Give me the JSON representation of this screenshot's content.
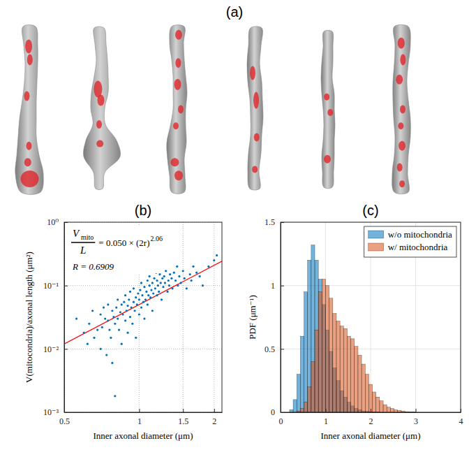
{
  "panel_a": {
    "label": "(a)"
  },
  "chart_data": [
    {
      "type": "scatter",
      "title": "(b)",
      "xlabel": "Inner axonal diameter (μm)",
      "ylabel": "V(mitocondria)/axonal length (μm²)",
      "log": true,
      "grid": true,
      "marker": "dot",
      "color": "#0072bd",
      "x": [
        0.56,
        0.6,
        0.62,
        0.63,
        0.65,
        0.66,
        0.68,
        0.7,
        0.7,
        0.71,
        0.72,
        0.73,
        0.74,
        0.75,
        0.75,
        0.76,
        0.77,
        0.78,
        0.78,
        0.79,
        0.8,
        0.8,
        0.81,
        0.82,
        0.82,
        0.83,
        0.84,
        0.85,
        0.85,
        0.86,
        0.87,
        0.88,
        0.88,
        0.89,
        0.9,
        0.9,
        0.91,
        0.92,
        0.92,
        0.93,
        0.94,
        0.95,
        0.95,
        0.96,
        0.97,
        0.97,
        0.98,
        0.99,
        1.0,
        1.0,
        1.01,
        1.02,
        1.02,
        1.03,
        1.04,
        1.05,
        1.05,
        1.06,
        1.07,
        1.08,
        1.08,
        1.09,
        1.1,
        1.1,
        1.11,
        1.12,
        1.13,
        1.13,
        1.14,
        1.15,
        1.16,
        1.17,
        1.18,
        1.18,
        1.19,
        1.2,
        1.21,
        1.22,
        1.23,
        1.24,
        1.25,
        1.26,
        1.27,
        1.28,
        1.3,
        1.31,
        1.32,
        1.33,
        1.35,
        1.36,
        1.38,
        1.4,
        1.42,
        1.43,
        1.45,
        1.47,
        1.5,
        1.52,
        1.55,
        1.6,
        1.62,
        1.65,
        1.7,
        1.75,
        1.8,
        1.9,
        2.0,
        2.05
      ],
      "values": [
        0.03,
        0.018,
        0.012,
        0.025,
        0.04,
        0.015,
        0.02,
        0.035,
        0.01,
        0.022,
        0.045,
        0.03,
        0.008,
        0.028,
        0.05,
        0.02,
        0.015,
        0.04,
        0.006,
        0.032,
        0.0018,
        0.025,
        0.045,
        0.03,
        0.06,
        0.02,
        0.038,
        0.012,
        0.05,
        0.035,
        0.055,
        0.028,
        0.07,
        0.04,
        0.018,
        0.048,
        0.06,
        0.032,
        0.08,
        0.045,
        0.025,
        0.055,
        0.09,
        0.04,
        0.065,
        0.015,
        0.05,
        0.075,
        0.035,
        0.06,
        0.085,
        0.045,
        0.11,
        0.07,
        0.055,
        0.03,
        0.095,
        0.06,
        0.08,
        0.12,
        0.05,
        0.07,
        0.1,
        0.14,
        0.065,
        0.085,
        0.11,
        0.04,
        0.075,
        0.13,
        0.09,
        0.16,
        0.07,
        0.12,
        0.1,
        0.08,
        0.15,
        0.11,
        0.06,
        0.13,
        0.095,
        0.14,
        0.11,
        0.17,
        0.08,
        0.12,
        0.1,
        0.15,
        0.13,
        0.09,
        0.16,
        0.12,
        0.2,
        0.1,
        0.14,
        0.11,
        0.17,
        0.13,
        0.09,
        0.15,
        0.12,
        0.2,
        0.16,
        0.14,
        0.1,
        0.2,
        0.25,
        0.3
      ],
      "fit_line": {
        "x": [
          0.5,
          2.15
        ],
        "values": [
          0.012,
          0.242
        ],
        "color": "#ff0000"
      },
      "equation": {
        "numerator": "V",
        "numerator_sub": "mito",
        "denominator": "L",
        "rhs": "= 0.050 × (2r)",
        "rhs_sup": "2.06"
      },
      "correlation": "R = 0.6909",
      "xlim": [
        0.5,
        2.15
      ],
      "xticks": [
        0.5,
        1,
        1.5,
        2
      ],
      "ylim": [
        0.001,
        1
      ],
      "yticks": [
        {
          "value": 0.001,
          "label": "10⁻³"
        },
        {
          "value": 0.01,
          "label": "10⁻²"
        },
        {
          "value": 0.1,
          "label": "10⁻¹"
        },
        {
          "value": 1,
          "label": "10⁰"
        }
      ]
    },
    {
      "type": "histogram",
      "title": "(c)",
      "xlabel": "Inner axonal diameter (μm)",
      "ylabel": "PDF (μm⁻¹)",
      "grid": true,
      "legend": "top-right",
      "bins": [
        0.2,
        0.28,
        0.36,
        0.44,
        0.52,
        0.6,
        0.68,
        0.76,
        0.84,
        0.92,
        1.0,
        1.08,
        1.16,
        1.24,
        1.32,
        1.4,
        1.48,
        1.56,
        1.64,
        1.72,
        1.8,
        1.88,
        1.96,
        2.04,
        2.12,
        2.2,
        2.28,
        2.36,
        2.44,
        2.52,
        2.6,
        2.68,
        2.76,
        2.84,
        2.92,
        3.0
      ],
      "series": [
        {
          "name": "w/o mitochondria",
          "color": "#0072bd",
          "values": [
            0.02,
            0.1,
            0.3,
            0.6,
            0.95,
            1.2,
            1.32,
            1.2,
            1.05,
            0.85,
            0.65,
            0.48,
            0.35,
            0.25,
            0.17,
            0.12,
            0.08,
            0.05,
            0.03,
            0.02,
            0.01,
            0.008,
            0.005,
            0.003,
            0.002,
            0,
            0,
            0,
            0,
            0,
            0,
            0,
            0,
            0,
            0
          ]
        },
        {
          "name": "w/ mitochondria",
          "color": "#d95319",
          "values": [
            0,
            0,
            0.01,
            0.03,
            0.08,
            0.2,
            0.4,
            0.65,
            0.95,
            1.05,
            1.0,
            0.9,
            0.78,
            0.72,
            0.68,
            0.66,
            0.6,
            0.58,
            0.52,
            0.45,
            0.38,
            0.3,
            0.22,
            0.16,
            0.12,
            0.09,
            0.06,
            0.04,
            0.03,
            0.02,
            0.015,
            0.01,
            0.005,
            0.003,
            0.002
          ]
        }
      ],
      "xlim": [
        0,
        4
      ],
      "xticks": [
        0,
        1,
        2,
        3,
        4
      ],
      "ylim": [
        0,
        1.5
      ],
      "yticks": [
        0,
        0.5,
        1,
        1.5
      ]
    }
  ]
}
